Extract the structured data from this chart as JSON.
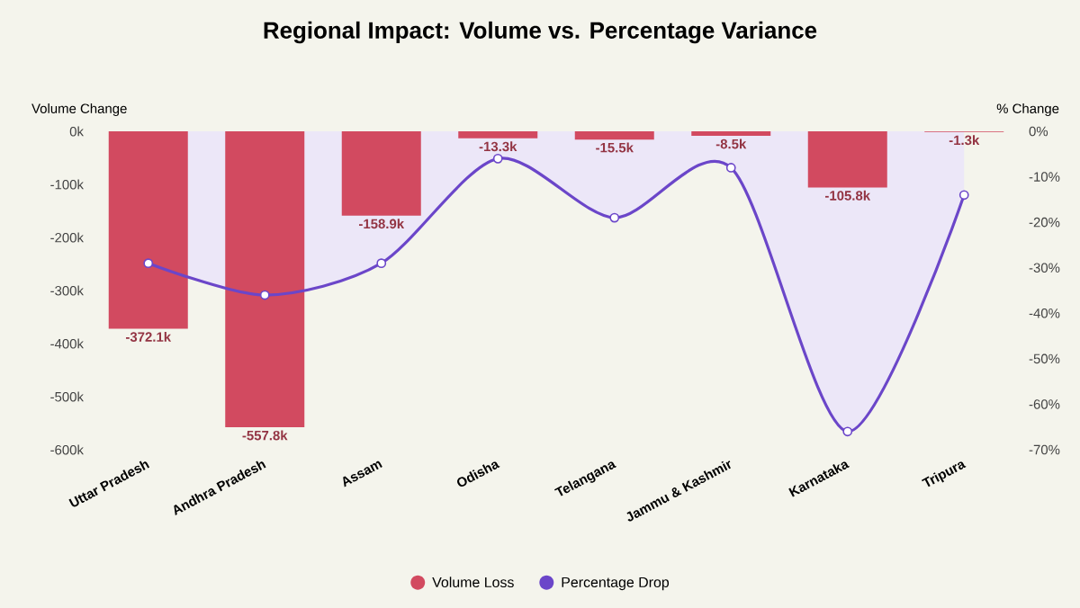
{
  "chart_data": {
    "type": "bar",
    "title": "Regional Impact: Volume vs. Percentage Variance",
    "ylabel": "Volume Change",
    "y2label": "% Change",
    "categories": [
      "Uttar Pradesh",
      "Andhra Pradesh",
      "Assam",
      "Odisha",
      "Telangana",
      "Jammu & Kashmir",
      "Karnataka",
      "Tripura"
    ],
    "series": [
      {
        "name": "Volume Loss",
        "color": "#d24a60",
        "values": [
          -372.1,
          -557.8,
          -158.9,
          -13.3,
          -15.5,
          -8.5,
          -105.8,
          -1.3
        ],
        "value_labels": [
          "-372.1k",
          "-557.8k",
          "-158.9k",
          "-13.3k",
          "-15.5k",
          "-8.5k",
          "-105.8k",
          "-1.3k"
        ]
      },
      {
        "name": "Percentage Drop",
        "type": "area",
        "axis": "y2",
        "color": "#6b46c9",
        "marker": "circle",
        "values": [
          -29,
          -36,
          -29,
          -6,
          -19,
          -8,
          -66,
          -14
        ]
      }
    ],
    "ylim": [
      -600,
      0
    ],
    "yticks": [
      {
        "value": 0,
        "label": "0k"
      },
      {
        "value": -100,
        "label": "-100k"
      },
      {
        "value": -200,
        "label": "-200k"
      },
      {
        "value": -300,
        "label": "-300k"
      },
      {
        "value": -400,
        "label": "-400k"
      },
      {
        "value": -500,
        "label": "-500k"
      },
      {
        "value": -600,
        "label": "-600k"
      }
    ],
    "y2lim": [
      -70,
      0
    ],
    "y2ticks": [
      {
        "value": 0,
        "label": "0%"
      },
      {
        "value": -10,
        "label": "-10%"
      },
      {
        "value": -20,
        "label": "-20%"
      },
      {
        "value": -30,
        "label": "-30%"
      },
      {
        "value": -40,
        "label": "-40%"
      },
      {
        "value": -50,
        "label": "-50%"
      },
      {
        "value": -60,
        "label": "-60%"
      },
      {
        "value": -70,
        "label": "-70%"
      }
    ],
    "legend": "bottom",
    "grid": false
  }
}
